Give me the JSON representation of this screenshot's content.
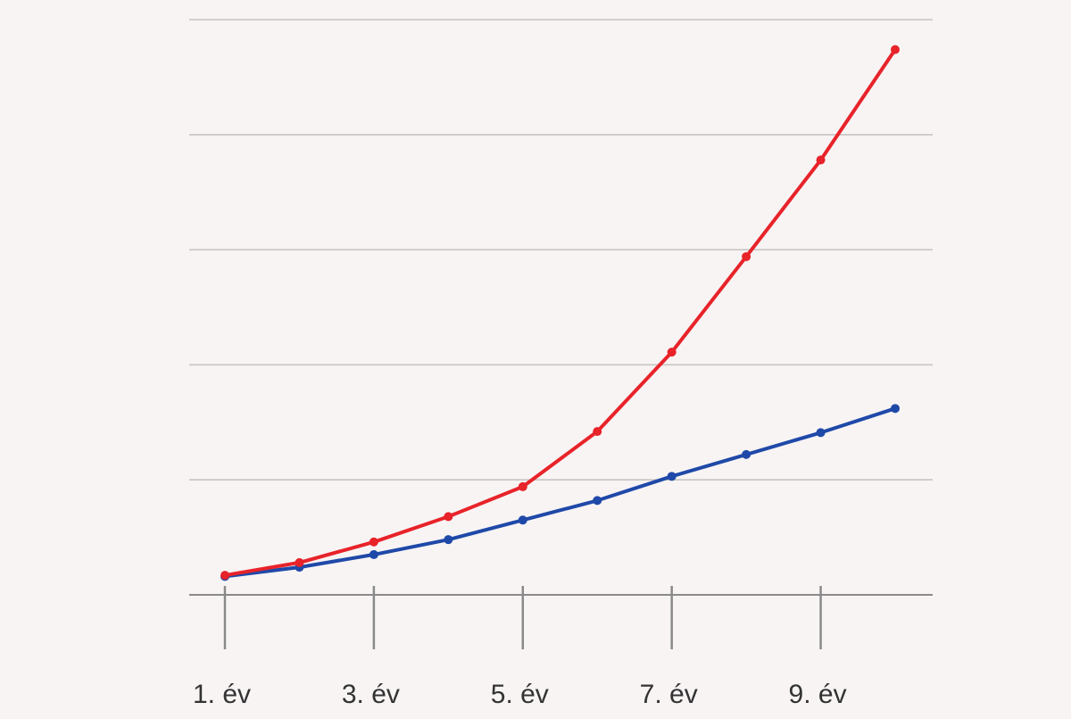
{
  "chart_data": {
    "type": "line",
    "title": "",
    "xlabel": "",
    "ylabel": "",
    "x": [
      1,
      2,
      3,
      4,
      5,
      6,
      7,
      8,
      9,
      10
    ],
    "x_tick_values": [
      1,
      3,
      5,
      7,
      9
    ],
    "x_tick_labels": [
      "1. év",
      "3. év",
      "5. év",
      "7. év",
      "9. év"
    ],
    "ylim": [
      0,
      5
    ],
    "y_gridlines": [
      1,
      2,
      3,
      4,
      5
    ],
    "grid": "horizontal",
    "legend": "none",
    "series": [
      {
        "color": "#e8232a",
        "values": [
          0.17,
          0.28,
          0.46,
          0.68,
          0.94,
          1.42,
          2.11,
          2.94,
          3.78,
          4.74
        ]
      },
      {
        "color": "#1f49a8",
        "values": [
          0.16,
          0.24,
          0.35,
          0.48,
          0.65,
          0.82,
          1.03,
          1.22,
          1.41,
          1.62
        ]
      }
    ],
    "gridline_color": "#c8c4c4",
    "axis_color": "#8a8a8a",
    "label_color": "#333333"
  }
}
